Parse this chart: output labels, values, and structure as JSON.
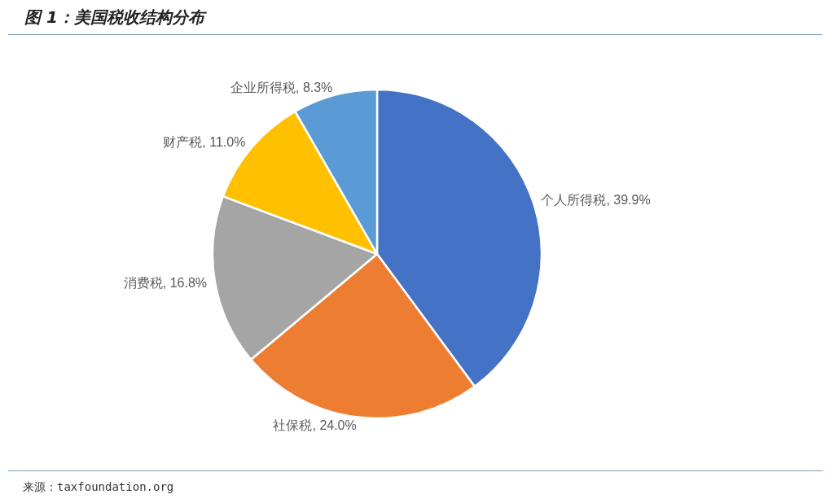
{
  "chart_data": {
    "type": "pie",
    "title": "图 1：美国税收结构分布",
    "categories": [
      "个人所得税",
      "社保税",
      "消费税",
      "财产税",
      "企业所得税"
    ],
    "values": [
      39.9,
      24.0,
      16.8,
      11.0,
      8.3
    ],
    "value_labels": [
      "39.9%",
      "24.0%",
      "16.8%",
      "11.0%",
      "8.3%"
    ],
    "colors": [
      "#4472c4",
      "#ed7d31",
      "#a5a5a5",
      "#ffc000",
      "#5b9bd5"
    ],
    "legend": false,
    "annotations": [
      "来源：taxfoundation.org"
    ]
  }
}
